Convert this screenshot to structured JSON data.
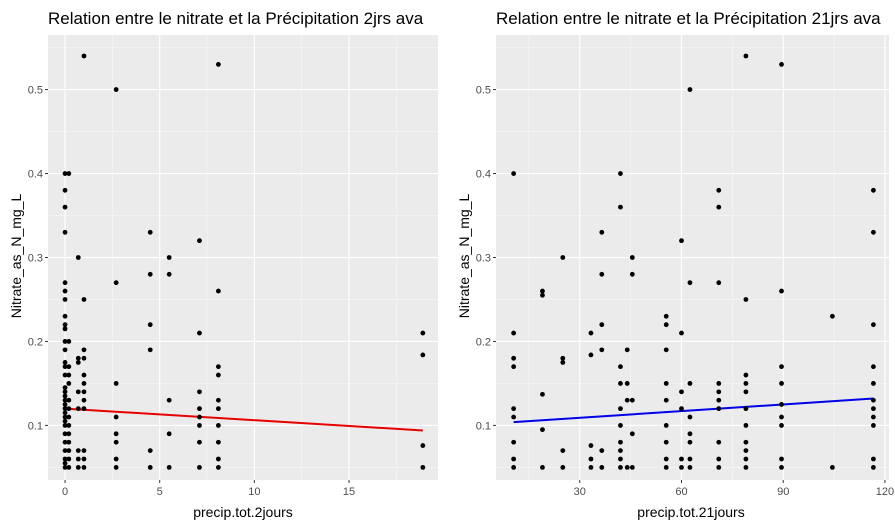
{
  "chart_data": [
    {
      "type": "scatter",
      "title": "Relation entre le nitrate et la Précipitation 2jrs ava",
      "xlabel": "precip.tot.2jours",
      "ylabel": "Nitrate_as_N_mg_L",
      "xlim": [
        -0.9,
        19.7
      ],
      "ylim": [
        0.035,
        0.565
      ],
      "x_ticks": [
        0,
        5,
        10,
        15
      ],
      "y_ticks": [
        0.1,
        0.2,
        0.3,
        0.4,
        0.5
      ],
      "grid": true,
      "point_color": "#000000",
      "trend_color": "#e60000",
      "trend_line": {
        "x": [
          0,
          18.9
        ],
        "y": [
          0.12,
          0.094
        ]
      },
      "points": [
        [
          0,
          0.05
        ],
        [
          0,
          0.055
        ],
        [
          0,
          0.06
        ],
        [
          0,
          0.07
        ],
        [
          0,
          0.08
        ],
        [
          0,
          0.09
        ],
        [
          0,
          0.1
        ],
        [
          0,
          0.105
        ],
        [
          0,
          0.11
        ],
        [
          0,
          0.115
        ],
        [
          0,
          0.12
        ],
        [
          0,
          0.125
        ],
        [
          0,
          0.13
        ],
        [
          0,
          0.135
        ],
        [
          0,
          0.14
        ],
        [
          0,
          0.145
        ],
        [
          0,
          0.16
        ],
        [
          0,
          0.17
        ],
        [
          0,
          0.175
        ],
        [
          0,
          0.19
        ],
        [
          0,
          0.2
        ],
        [
          0,
          0.215
        ],
        [
          0,
          0.22
        ],
        [
          0,
          0.23
        ],
        [
          0,
          0.25
        ],
        [
          0,
          0.26
        ],
        [
          0,
          0.27
        ],
        [
          0,
          0.33
        ],
        [
          0,
          0.36
        ],
        [
          0,
          0.38
        ],
        [
          0,
          0.4
        ],
        [
          0.2,
          0.05
        ],
        [
          0.2,
          0.06
        ],
        [
          0.2,
          0.07
        ],
        [
          0.2,
          0.08
        ],
        [
          0.2,
          0.09
        ],
        [
          0.2,
          0.1
        ],
        [
          0.2,
          0.11
        ],
        [
          0.2,
          0.12
        ],
        [
          0.2,
          0.13
        ],
        [
          0.2,
          0.15
        ],
        [
          0.2,
          0.16
        ],
        [
          0.2,
          0.17
        ],
        [
          0.2,
          0.2
        ],
        [
          0.2,
          0.4
        ],
        [
          0.7,
          0.05
        ],
        [
          0.7,
          0.06
        ],
        [
          0.7,
          0.07
        ],
        [
          0.7,
          0.12
        ],
        [
          0.7,
          0.14
        ],
        [
          0.7,
          0.175
        ],
        [
          0.7,
          0.18
        ],
        [
          0.7,
          0.3
        ],
        [
          1,
          0.05
        ],
        [
          1,
          0.06
        ],
        [
          1,
          0.07
        ],
        [
          1,
          0.12
        ],
        [
          1,
          0.13
        ],
        [
          1,
          0.14
        ],
        [
          1,
          0.15
        ],
        [
          1,
          0.16
        ],
        [
          1,
          0.18
        ],
        [
          1,
          0.19
        ],
        [
          1,
          0.25
        ],
        [
          1,
          0.54
        ],
        [
          2.7,
          0.05
        ],
        [
          2.7,
          0.06
        ],
        [
          2.7,
          0.08
        ],
        [
          2.7,
          0.09
        ],
        [
          2.7,
          0.11
        ],
        [
          2.7,
          0.15
        ],
        [
          2.7,
          0.27
        ],
        [
          2.7,
          0.5
        ],
        [
          4.5,
          0.05
        ],
        [
          4.5,
          0.07
        ],
        [
          4.5,
          0.19
        ],
        [
          4.5,
          0.22
        ],
        [
          4.5,
          0.28
        ],
        [
          4.5,
          0.33
        ],
        [
          5.5,
          0.05
        ],
        [
          5.5,
          0.09
        ],
        [
          5.5,
          0.13
        ],
        [
          5.5,
          0.28
        ],
        [
          5.5,
          0.3
        ],
        [
          7.1,
          0.05
        ],
        [
          7.1,
          0.08
        ],
        [
          7.1,
          0.1
        ],
        [
          7.1,
          0.11
        ],
        [
          7.1,
          0.12
        ],
        [
          7.1,
          0.14
        ],
        [
          7.1,
          0.21
        ],
        [
          7.1,
          0.32
        ],
        [
          8.1,
          0.05
        ],
        [
          8.1,
          0.06
        ],
        [
          8.1,
          0.08
        ],
        [
          8.1,
          0.1
        ],
        [
          8.1,
          0.12
        ],
        [
          8.1,
          0.13
        ],
        [
          8.1,
          0.16
        ],
        [
          8.1,
          0.17
        ],
        [
          8.1,
          0.26
        ],
        [
          8.1,
          0.53
        ],
        [
          18.9,
          0.05
        ],
        [
          18.9,
          0.076
        ],
        [
          18.9,
          0.184
        ],
        [
          18.9,
          0.21
        ]
      ]
    },
    {
      "type": "scatter",
      "title": "Relation entre le nitrate et la Précipitation 21jrs ava",
      "xlabel": "precip.tot.21jours",
      "ylabel": "Nitrate_as_N_mg_L",
      "xlim": [
        5.3,
        121.2
      ],
      "ylim": [
        0.035,
        0.565
      ],
      "x_ticks": [
        30,
        60,
        90,
        120
      ],
      "y_ticks": [
        0.1,
        0.2,
        0.3,
        0.4,
        0.5
      ],
      "grid": true,
      "point_color": "#000000",
      "trend_color": "#0000e6",
      "trend_line": {
        "x": [
          10.5,
          116.6
        ],
        "y": [
          0.104,
          0.132
        ]
      },
      "points": [
        [
          10.5,
          0.05
        ],
        [
          10.5,
          0.06
        ],
        [
          10.5,
          0.08
        ],
        [
          10.5,
          0.11
        ],
        [
          10.5,
          0.12
        ],
        [
          10.5,
          0.17
        ],
        [
          10.5,
          0.18
        ],
        [
          10.5,
          0.21
        ],
        [
          10.5,
          0.4
        ],
        [
          19,
          0.05
        ],
        [
          19,
          0.095
        ],
        [
          19,
          0.137
        ],
        [
          19,
          0.255
        ],
        [
          19,
          0.26
        ],
        [
          25,
          0.05
        ],
        [
          25,
          0.07
        ],
        [
          25,
          0.175
        ],
        [
          25,
          0.18
        ],
        [
          25,
          0.3
        ],
        [
          33.3,
          0.05
        ],
        [
          33.3,
          0.06
        ],
        [
          33.3,
          0.076
        ],
        [
          33.3,
          0.184
        ],
        [
          33.3,
          0.21
        ],
        [
          36.5,
          0.05
        ],
        [
          36.5,
          0.07
        ],
        [
          36.5,
          0.19
        ],
        [
          36.5,
          0.22
        ],
        [
          36.5,
          0.28
        ],
        [
          36.5,
          0.33
        ],
        [
          42,
          0.05
        ],
        [
          42,
          0.06
        ],
        [
          42,
          0.07
        ],
        [
          42,
          0.08
        ],
        [
          42,
          0.1
        ],
        [
          42,
          0.12
        ],
        [
          42,
          0.15
        ],
        [
          42,
          0.17
        ],
        [
          42,
          0.36
        ],
        [
          42,
          0.4
        ],
        [
          44,
          0.05
        ],
        [
          44,
          0.13
        ],
        [
          44,
          0.15
        ],
        [
          44,
          0.19
        ],
        [
          45.5,
          0.05
        ],
        [
          45.5,
          0.09
        ],
        [
          45.5,
          0.13
        ],
        [
          45.5,
          0.28
        ],
        [
          45.5,
          0.3
        ],
        [
          55.5,
          0.05
        ],
        [
          55.5,
          0.06
        ],
        [
          55.5,
          0.08
        ],
        [
          55.5,
          0.1
        ],
        [
          55.5,
          0.13
        ],
        [
          55.5,
          0.15
        ],
        [
          55.5,
          0.19
        ],
        [
          55.5,
          0.22
        ],
        [
          55.5,
          0.23
        ],
        [
          60,
          0.05
        ],
        [
          60,
          0.06
        ],
        [
          60,
          0.12
        ],
        [
          60,
          0.14
        ],
        [
          60,
          0.21
        ],
        [
          60,
          0.32
        ],
        [
          62.5,
          0.05
        ],
        [
          62.5,
          0.06
        ],
        [
          62.5,
          0.08
        ],
        [
          62.5,
          0.09
        ],
        [
          62.5,
          0.11
        ],
        [
          62.5,
          0.15
        ],
        [
          62.5,
          0.27
        ],
        [
          62.5,
          0.5
        ],
        [
          71,
          0.05
        ],
        [
          71,
          0.06
        ],
        [
          71,
          0.08
        ],
        [
          71,
          0.12
        ],
        [
          71,
          0.13
        ],
        [
          71,
          0.14
        ],
        [
          71,
          0.15
        ],
        [
          71,
          0.27
        ],
        [
          71,
          0.36
        ],
        [
          71,
          0.38
        ],
        [
          79,
          0.05
        ],
        [
          79,
          0.06
        ],
        [
          79,
          0.07
        ],
        [
          79,
          0.08
        ],
        [
          79,
          0.1
        ],
        [
          79,
          0.12
        ],
        [
          79,
          0.14
        ],
        [
          79,
          0.15
        ],
        [
          79,
          0.16
        ],
        [
          79,
          0.25
        ],
        [
          79,
          0.54
        ],
        [
          89.5,
          0.05
        ],
        [
          89.5,
          0.06
        ],
        [
          89.5,
          0.1
        ],
        [
          89.5,
          0.11
        ],
        [
          89.5,
          0.125
        ],
        [
          89.5,
          0.15
        ],
        [
          89.5,
          0.17
        ],
        [
          89.5,
          0.26
        ],
        [
          89.5,
          0.53
        ],
        [
          104.5,
          0.05
        ],
        [
          104.5,
          0.23
        ],
        [
          116.6,
          0.05
        ],
        [
          116.6,
          0.06
        ],
        [
          116.6,
          0.1
        ],
        [
          116.6,
          0.11
        ],
        [
          116.6,
          0.12
        ],
        [
          116.6,
          0.13
        ],
        [
          116.6,
          0.15
        ],
        [
          116.6,
          0.17
        ],
        [
          116.6,
          0.22
        ],
        [
          116.6,
          0.33
        ],
        [
          116.6,
          0.38
        ]
      ]
    }
  ]
}
